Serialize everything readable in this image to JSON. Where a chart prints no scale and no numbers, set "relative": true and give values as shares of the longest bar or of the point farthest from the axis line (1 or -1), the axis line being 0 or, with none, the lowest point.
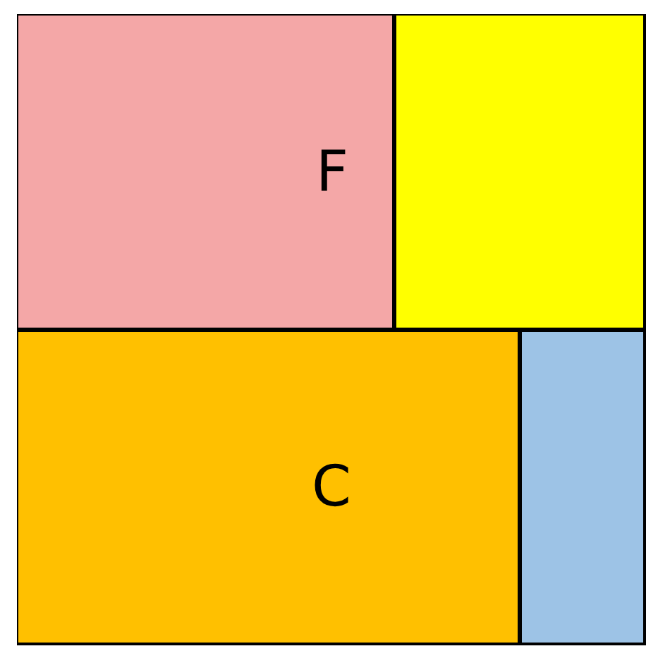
{
  "chart_data": {
    "type": "bar",
    "orientation": "horizontal",
    "stacked": true,
    "relative": true,
    "categories": [
      "F",
      "C"
    ],
    "series": [
      {
        "colors": [
          "#f4a7a7",
          "#ffc000"
        ],
        "values": [
          0.6,
          0.8
        ]
      },
      {
        "colors": [
          "#ffff00",
          "#9dc3e6"
        ],
        "values": [
          0.4,
          0.2
        ]
      }
    ]
  }
}
